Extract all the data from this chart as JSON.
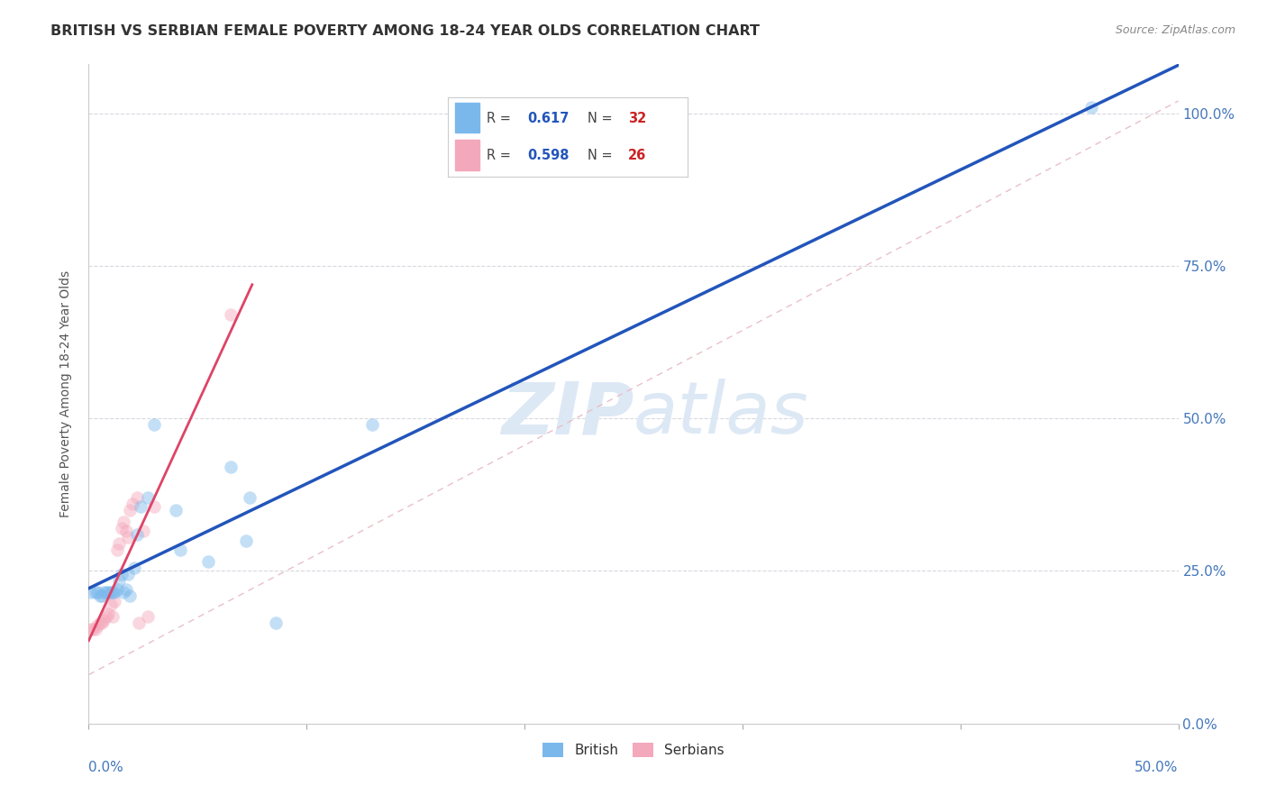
{
  "title": "BRITISH VS SERBIAN FEMALE POVERTY AMONG 18-24 YEAR OLDS CORRELATION CHART",
  "source": "Source: ZipAtlas.com",
  "ylabel": "Female Poverty Among 18-24 Year Olds",
  "x_min": 0.0,
  "x_max": 0.5,
  "y_min": 0.0,
  "y_max": 1.08,
  "british_R": "0.617",
  "british_N": "32",
  "serbian_R": "0.598",
  "serbian_N": "26",
  "british_color": "#7ab8ec",
  "serbian_color": "#f4a8bb",
  "british_line_color": "#2255bb",
  "serbian_line_color": "#dd4466",
  "diagonal_color": "#e8c0c8",
  "grid_color": "#d8d8e0",
  "background_color": "#ffffff",
  "title_color": "#333333",
  "axis_label_color": "#4477bb",
  "watermark_color": "#dde8f5",
  "british_x": [
    0.001,
    0.003,
    0.004,
    0.005,
    0.006,
    0.007,
    0.008,
    0.009,
    0.01,
    0.011,
    0.012,
    0.013,
    0.014,
    0.015,
    0.016,
    0.017,
    0.018,
    0.019,
    0.021,
    0.022,
    0.024,
    0.027,
    0.03,
    0.04,
    0.042,
    0.055,
    0.065,
    0.072,
    0.074,
    0.086,
    0.13,
    0.46
  ],
  "british_y": [
    0.215,
    0.215,
    0.215,
    0.21,
    0.21,
    0.215,
    0.215,
    0.215,
    0.215,
    0.215,
    0.215,
    0.22,
    0.235,
    0.245,
    0.215,
    0.22,
    0.245,
    0.21,
    0.255,
    0.31,
    0.355,
    0.37,
    0.49,
    0.35,
    0.285,
    0.265,
    0.42,
    0.3,
    0.37,
    0.165,
    0.49,
    1.01
  ],
  "serbian_x": [
    0.001,
    0.002,
    0.003,
    0.004,
    0.005,
    0.006,
    0.007,
    0.008,
    0.009,
    0.01,
    0.011,
    0.012,
    0.013,
    0.014,
    0.015,
    0.016,
    0.017,
    0.018,
    0.019,
    0.02,
    0.022,
    0.023,
    0.025,
    0.027,
    0.03,
    0.065
  ],
  "serbian_y": [
    0.155,
    0.155,
    0.155,
    0.16,
    0.165,
    0.165,
    0.17,
    0.175,
    0.18,
    0.195,
    0.175,
    0.2,
    0.285,
    0.295,
    0.32,
    0.33,
    0.315,
    0.305,
    0.35,
    0.36,
    0.37,
    0.165,
    0.315,
    0.175,
    0.355,
    0.67
  ],
  "marker_size": 110,
  "marker_alpha": 0.45
}
